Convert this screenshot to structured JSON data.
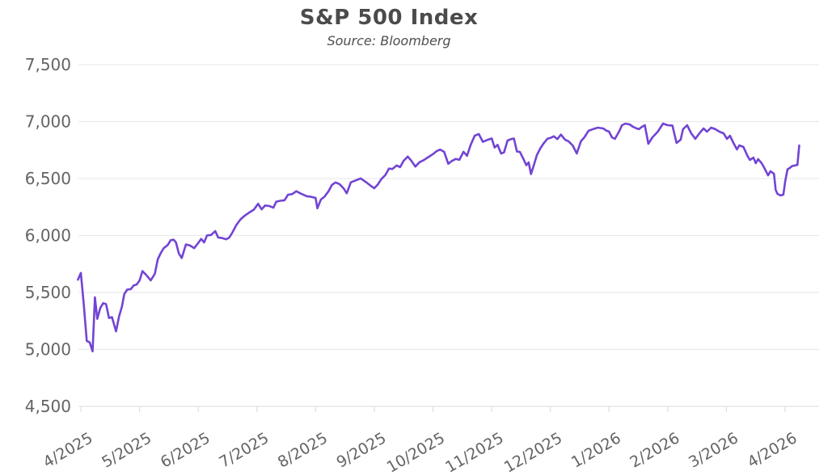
{
  "chart": {
    "title": "S&P 500 Index",
    "subtitle": "Source: Bloomberg"
  },
  "chart_data": {
    "type": "line",
    "title": "S&P 500 Index",
    "subtitle": "Source: Bloomberg",
    "series_name": "S&P 500 Index level",
    "xlabel": "",
    "ylabel": "",
    "legend": "none",
    "grid": "horizontal-only",
    "line_color": "#7244d4",
    "grid_color": "#ebebeb",
    "axis_line_color": "#e2e2e2",
    "tick_color": "#dedede",
    "label_color": "#646464",
    "title_color": "#4b4b4b",
    "ylim": [
      4500,
      7500
    ],
    "y_ticks": [
      {
        "value": 7500,
        "label": "7,500"
      },
      {
        "value": 7000,
        "label": "7,000"
      },
      {
        "value": 6500,
        "label": "6,500"
      },
      {
        "value": 6000,
        "label": "6,000"
      },
      {
        "value": 5500,
        "label": "5,500"
      },
      {
        "value": 5000,
        "label": "5,000"
      },
      {
        "value": 4500,
        "label": "4,500"
      }
    ],
    "x_ticks": [
      {
        "m": 0,
        "label": "4/2025"
      },
      {
        "m": 1,
        "label": "5/2025"
      },
      {
        "m": 2,
        "label": "6/2025"
      },
      {
        "m": 3,
        "label": "7/2025"
      },
      {
        "m": 4,
        "label": "8/2025"
      },
      {
        "m": 5,
        "label": "9/2025"
      },
      {
        "m": 6,
        "label": "10/2025"
      },
      {
        "m": 7,
        "label": "11/2025"
      },
      {
        "m": 8,
        "label": "12/2025"
      },
      {
        "m": 9,
        "label": "1/2026"
      },
      {
        "m": 10,
        "label": "2/2026"
      },
      {
        "m": 11,
        "label": "3/2026"
      },
      {
        "m": 12,
        "label": "4/2026"
      }
    ],
    "x_unit": "months since 4/2025",
    "points": [
      [
        -0.05,
        5612
      ],
      [
        0.0,
        5671
      ],
      [
        0.05,
        5396
      ],
      [
        0.1,
        5074
      ],
      [
        0.15,
        5062
      ],
      [
        0.2,
        4983
      ],
      [
        0.24,
        5457
      ],
      [
        0.28,
        5268
      ],
      [
        0.33,
        5363
      ],
      [
        0.38,
        5406
      ],
      [
        0.43,
        5397
      ],
      [
        0.48,
        5276
      ],
      [
        0.53,
        5283
      ],
      [
        0.6,
        5158
      ],
      [
        0.65,
        5288
      ],
      [
        0.7,
        5376
      ],
      [
        0.74,
        5485
      ],
      [
        0.79,
        5525
      ],
      [
        0.85,
        5529
      ],
      [
        0.9,
        5561
      ],
      [
        0.95,
        5569
      ],
      [
        1.0,
        5604
      ],
      [
        1.05,
        5687
      ],
      [
        1.12,
        5650
      ],
      [
        1.19,
        5606
      ],
      [
        1.26,
        5664
      ],
      [
        1.31,
        5791
      ],
      [
        1.36,
        5844
      ],
      [
        1.41,
        5887
      ],
      [
        1.48,
        5916
      ],
      [
        1.53,
        5958
      ],
      [
        1.58,
        5963
      ],
      [
        1.62,
        5940
      ],
      [
        1.67,
        5842
      ],
      [
        1.72,
        5802
      ],
      [
        1.79,
        5921
      ],
      [
        1.86,
        5912
      ],
      [
        1.93,
        5889
      ],
      [
        2.0,
        5935
      ],
      [
        2.05,
        5970
      ],
      [
        2.1,
        5939
      ],
      [
        2.15,
        6000
      ],
      [
        2.22,
        6005
      ],
      [
        2.29,
        6038
      ],
      [
        2.34,
        5982
      ],
      [
        2.41,
        5977
      ],
      [
        2.48,
        5967
      ],
      [
        2.53,
        5982
      ],
      [
        2.58,
        6025
      ],
      [
        2.65,
        6092
      ],
      [
        2.72,
        6141
      ],
      [
        2.79,
        6173
      ],
      [
        2.88,
        6205
      ],
      [
        2.95,
        6228
      ],
      [
        3.02,
        6279
      ],
      [
        3.08,
        6230
      ],
      [
        3.14,
        6263
      ],
      [
        3.21,
        6259
      ],
      [
        3.28,
        6244
      ],
      [
        3.33,
        6297
      ],
      [
        3.4,
        6305
      ],
      [
        3.47,
        6309
      ],
      [
        3.53,
        6358
      ],
      [
        3.6,
        6363
      ],
      [
        3.67,
        6389
      ],
      [
        3.74,
        6370
      ],
      [
        3.85,
        6345
      ],
      [
        3.93,
        6339
      ],
      [
        4.0,
        6330
      ],
      [
        4.03,
        6238
      ],
      [
        4.09,
        6316
      ],
      [
        4.15,
        6340
      ],
      [
        4.22,
        6389
      ],
      [
        4.28,
        6445
      ],
      [
        4.34,
        6466
      ],
      [
        4.41,
        6450
      ],
      [
        4.48,
        6411
      ],
      [
        4.53,
        6370
      ],
      [
        4.6,
        6467
      ],
      [
        4.67,
        6481
      ],
      [
        4.77,
        6501
      ],
      [
        4.88,
        6460
      ],
      [
        4.95,
        6432
      ],
      [
        5.0,
        6415
      ],
      [
        5.06,
        6448
      ],
      [
        5.12,
        6495
      ],
      [
        5.19,
        6532
      ],
      [
        5.25,
        6587
      ],
      [
        5.31,
        6584
      ],
      [
        5.38,
        6615
      ],
      [
        5.44,
        6600
      ],
      [
        5.5,
        6656
      ],
      [
        5.57,
        6693
      ],
      [
        5.63,
        6657
      ],
      [
        5.7,
        6605
      ],
      [
        5.77,
        6643
      ],
      [
        5.84,
        6661
      ],
      [
        5.92,
        6688
      ],
      [
        6.0,
        6715
      ],
      [
        6.06,
        6740
      ],
      [
        6.12,
        6754
      ],
      [
        6.19,
        6735
      ],
      [
        6.26,
        6629
      ],
      [
        6.32,
        6654
      ],
      [
        6.39,
        6672
      ],
      [
        6.45,
        6664
      ],
      [
        6.52,
        6735
      ],
      [
        6.58,
        6699
      ],
      [
        6.64,
        6792
      ],
      [
        6.71,
        6875
      ],
      [
        6.78,
        6891
      ],
      [
        6.85,
        6822
      ],
      [
        6.93,
        6840
      ],
      [
        7.0,
        6852
      ],
      [
        7.05,
        6772
      ],
      [
        7.1,
        6796
      ],
      [
        7.16,
        6720
      ],
      [
        7.21,
        6729
      ],
      [
        7.27,
        6833
      ],
      [
        7.33,
        6846
      ],
      [
        7.38,
        6851
      ],
      [
        7.43,
        6737
      ],
      [
        7.48,
        6734
      ],
      [
        7.54,
        6672
      ],
      [
        7.59,
        6617
      ],
      [
        7.63,
        6642
      ],
      [
        7.67,
        6539
      ],
      [
        7.71,
        6603
      ],
      [
        7.77,
        6705
      ],
      [
        7.83,
        6766
      ],
      [
        7.89,
        6812
      ],
      [
        7.95,
        6849
      ],
      [
        8.0,
        6856
      ],
      [
        8.06,
        6871
      ],
      [
        8.12,
        6846
      ],
      [
        8.18,
        6886
      ],
      [
        8.25,
        6841
      ],
      [
        8.31,
        6827
      ],
      [
        8.38,
        6791
      ],
      [
        8.45,
        6720
      ],
      [
        8.52,
        6827
      ],
      [
        8.58,
        6862
      ],
      [
        8.65,
        6919
      ],
      [
        8.73,
        6934
      ],
      [
        8.81,
        6947
      ],
      [
        8.9,
        6940
      ],
      [
        8.96,
        6919
      ],
      [
        9.0,
        6912
      ],
      [
        9.05,
        6862
      ],
      [
        9.1,
        6848
      ],
      [
        9.17,
        6912
      ],
      [
        9.22,
        6968
      ],
      [
        9.28,
        6982
      ],
      [
        9.35,
        6975
      ],
      [
        9.41,
        6954
      ],
      [
        9.47,
        6940
      ],
      [
        9.51,
        6933
      ],
      [
        9.56,
        6954
      ],
      [
        9.61,
        6968
      ],
      [
        9.67,
        6805
      ],
      [
        9.74,
        6862
      ],
      [
        9.83,
        6911
      ],
      [
        9.92,
        6982
      ],
      [
        10.0,
        6968
      ],
      [
        10.08,
        6965
      ],
      [
        10.15,
        6812
      ],
      [
        10.22,
        6841
      ],
      [
        10.26,
        6933
      ],
      [
        10.33,
        6968
      ],
      [
        10.4,
        6897
      ],
      [
        10.47,
        6848
      ],
      [
        10.54,
        6897
      ],
      [
        10.61,
        6940
      ],
      [
        10.67,
        6911
      ],
      [
        10.74,
        6947
      ],
      [
        10.81,
        6933
      ],
      [
        10.88,
        6911
      ],
      [
        10.95,
        6897
      ],
      [
        11.01,
        6848
      ],
      [
        11.06,
        6876
      ],
      [
        11.12,
        6812
      ],
      [
        11.18,
        6755
      ],
      [
        11.22,
        6791
      ],
      [
        11.29,
        6777
      ],
      [
        11.36,
        6698
      ],
      [
        11.4,
        6663
      ],
      [
        11.46,
        6684
      ],
      [
        11.5,
        6635
      ],
      [
        11.54,
        6670
      ],
      [
        11.6,
        6635
      ],
      [
        11.64,
        6599
      ],
      [
        11.71,
        6528
      ],
      [
        11.75,
        6564
      ],
      [
        11.81,
        6542
      ],
      [
        11.84,
        6400
      ],
      [
        11.87,
        6365
      ],
      [
        11.92,
        6352
      ],
      [
        11.97,
        6358
      ],
      [
        12.0,
        6472
      ],
      [
        12.04,
        6580
      ],
      [
        12.08,
        6593
      ],
      [
        12.12,
        6610
      ],
      [
        12.17,
        6615
      ],
      [
        12.21,
        6620
      ],
      [
        12.24,
        6790
      ]
    ]
  }
}
